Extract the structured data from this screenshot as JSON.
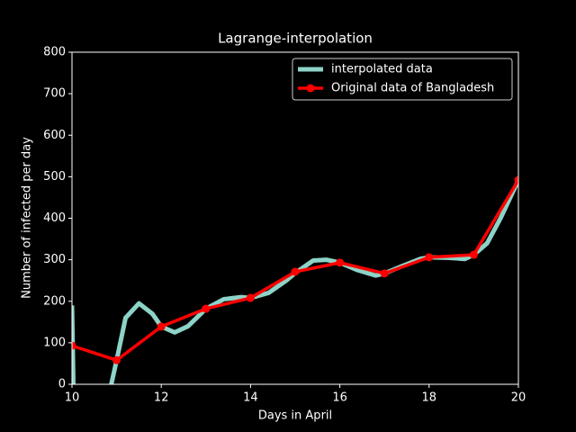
{
  "chart_data": {
    "type": "line",
    "title": "Lagrange-interpolation",
    "x_label": "Days in April",
    "y_label": "Number of infected per day",
    "xlim": [
      10,
      20
    ],
    "xticks": [
      10,
      12,
      14,
      16,
      18,
      20
    ],
    "ylim": [
      0,
      800
    ],
    "yticks": [
      0,
      100,
      200,
      300,
      400,
      500,
      600,
      700,
      800
    ],
    "legend": "upper right",
    "series": [
      {
        "name": "interpolated data",
        "color": "#8dd3c7",
        "width": 5,
        "markers": false,
        "x": [
          10,
          10.03,
          10.5,
          10.88,
          11.0,
          11.2,
          11.5,
          11.8,
          12.0,
          12.3,
          12.6,
          13.0,
          13.4,
          13.8,
          14.0,
          14.4,
          14.8,
          15.0,
          15.4,
          15.7,
          16.0,
          16.4,
          16.8,
          17.0,
          17.4,
          17.8,
          18.0,
          18.4,
          18.8,
          19.0,
          19.3,
          19.6,
          20.0
        ],
        "values": [
          190,
          0,
          null,
          0,
          58,
          160,
          195,
          170,
          139,
          125,
          140,
          182,
          205,
          210,
          208,
          220,
          250,
          268,
          298,
          300,
          293,
          275,
          262,
          267,
          285,
          302,
          306,
          305,
          302,
          312,
          340,
          400,
          492
        ]
      },
      {
        "name": "Original data of Bangladesh",
        "color": "#ff0000",
        "width": 3.5,
        "markers": true,
        "x": [
          10,
          11,
          12,
          13,
          14,
          15,
          16,
          17,
          18,
          19,
          20
        ],
        "values": [
          93,
          58,
          139,
          182,
          208,
          271,
          293,
          267,
          306,
          312,
          492
        ]
      }
    ]
  }
}
